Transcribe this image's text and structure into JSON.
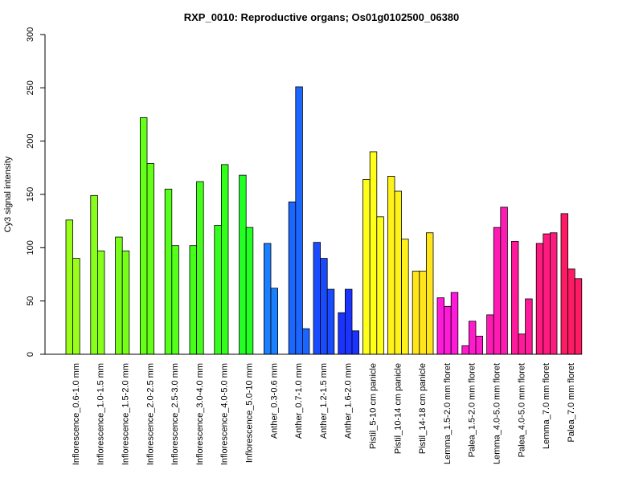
{
  "chart_data": {
    "type": "bar",
    "title": "RXP_0010: Reproductive organs; Os01g0102500_06380",
    "xlabel": "",
    "ylabel": "Cy3 signal intensity",
    "ylim": [
      0,
      300
    ],
    "yticks": [
      0,
      50,
      100,
      150,
      200,
      250,
      300
    ],
    "grid": false,
    "legend": "none",
    "groups": [
      {
        "label": "Inflorescence_0.6-1.0 mm",
        "color": "#99ff1a",
        "values": [
          126,
          90
        ]
      },
      {
        "label": "Inflorescence_1.0-1.5 mm",
        "color": "#88ff1a",
        "values": [
          149,
          97
        ]
      },
      {
        "label": "Inflorescence_1.5-2.0 mm",
        "color": "#77ff1a",
        "values": [
          110,
          97
        ]
      },
      {
        "label": "Inflorescence_2.0-2.5 mm",
        "color": "#66ff1a",
        "values": [
          222,
          179
        ]
      },
      {
        "label": "Inflorescence_2.5-3.0 mm",
        "color": "#55ff1a",
        "values": [
          155,
          102
        ]
      },
      {
        "label": "Inflorescence_3.0-4.0 mm",
        "color": "#44ff1a",
        "values": [
          102,
          162
        ]
      },
      {
        "label": "Inflorescence_4.0-5.0 mm",
        "color": "#33ff1a",
        "values": [
          121,
          178
        ]
      },
      {
        "label": "Inflorescence_5.0-10 mm",
        "color": "#22ff22",
        "values": [
          168,
          119
        ]
      },
      {
        "label": "Anther_0.3-0.6 mm",
        "color": "#1a80ff",
        "values": [
          104,
          62
        ]
      },
      {
        "label": "Anther_0.7-1.0 mm",
        "color": "#1a66ff",
        "values": [
          143,
          251,
          24
        ]
      },
      {
        "label": "Anther_1.2-1.5 mm",
        "color": "#1a4cff",
        "values": [
          105,
          90,
          61
        ]
      },
      {
        "label": "Anther_1.6-2.0 mm",
        "color": "#1a33ff",
        "values": [
          39,
          61,
          22
        ]
      },
      {
        "label": "Pistil_5-10 cm panicle",
        "color": "#ffff1a",
        "values": [
          164,
          190,
          129
        ]
      },
      {
        "label": "Pistil_10-14 cm panicle",
        "color": "#fff21a",
        "values": [
          167,
          153,
          108
        ]
      },
      {
        "label": "Pistil_14-18 cm panicle",
        "color": "#ffe51a",
        "values": [
          78,
          78,
          114
        ]
      },
      {
        "label": "Lemma_1.5-2.0 mm floret",
        "color": "#ff1ad9",
        "values": [
          53,
          45,
          58
        ]
      },
      {
        "label": "Palea_1.5-2.0 mm floret",
        "color": "#ff1acc",
        "values": [
          8,
          31,
          17
        ]
      },
      {
        "label": "Lemma_4.0-5.0 mm floret",
        "color": "#ff1ab3",
        "values": [
          37,
          119,
          138
        ]
      },
      {
        "label": "Palea_4.0-5.0 mm floret",
        "color": "#ff1a99",
        "values": [
          106,
          19,
          52
        ]
      },
      {
        "label": "Lemma_7.0 mm floret",
        "color": "#ff1a80",
        "values": [
          104,
          113,
          114
        ]
      },
      {
        "label": "Palea_7.0 mm floret",
        "color": "#ff1a66",
        "values": [
          132,
          80,
          71
        ]
      }
    ]
  }
}
